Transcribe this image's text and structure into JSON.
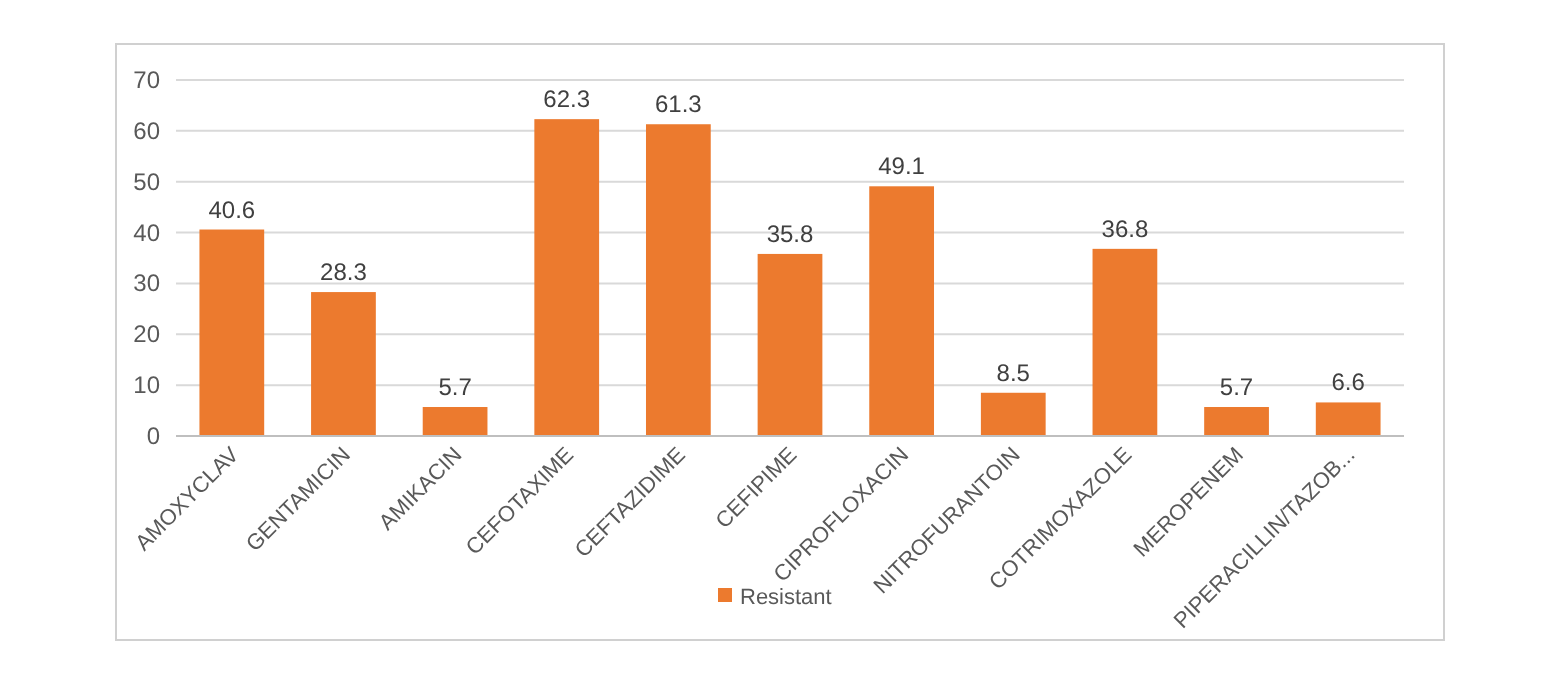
{
  "chart_data": {
    "type": "bar",
    "categories": [
      "AMOXYCLAV",
      "GENTAMICIN",
      "AMIKACIN",
      "CEFOTAXIME",
      "CEFTAZIDIME",
      "CEFIPIME",
      "CIPROFLOXACIN",
      "NITROFURANTOIN",
      "COTRIMOXAZOLE",
      "MEROPENEM",
      "PIPERACILLIN/TAZOB..."
    ],
    "series": [
      {
        "name": "Resistant",
        "color": "#ec7a2e",
        "values": [
          40.6,
          28.3,
          5.7,
          62.3,
          61.3,
          35.8,
          49.1,
          8.5,
          36.8,
          5.7,
          6.6
        ]
      }
    ],
    "ylim": [
      0,
      70
    ],
    "yticks": [
      0,
      10,
      20,
      30,
      40,
      50,
      60,
      70
    ],
    "grid": "y",
    "legend": "bottom",
    "data_labels": true
  }
}
